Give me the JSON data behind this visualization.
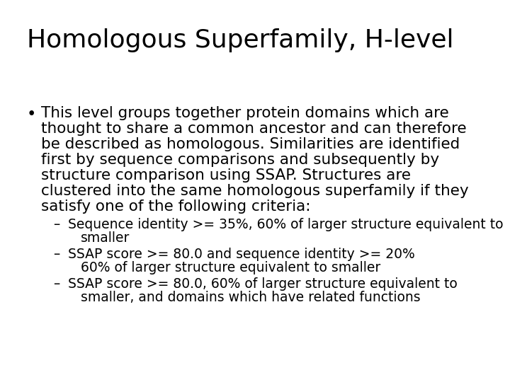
{
  "title": "Homologous Superfamily, H-level",
  "title_fontsize": 26,
  "background_color": "#ffffff",
  "text_color": "#000000",
  "font_family": "DejaVu Sans",
  "bullet_lines": [
    "This level groups together protein domains which are",
    "thought to share a common ancestor and can therefore",
    "be described as homologous. Similarities are identified",
    "first by sequence comparisons and subsequently by",
    "structure comparison using SSAP. Structures are",
    "clustered into the same homologous superfamily if they",
    "satisfy one of the following criteria:"
  ],
  "bullet_fontsize": 15.5,
  "sub_bullets": [
    [
      "Sequence identity >= 35%, 60% of larger structure equivalent to",
      "smaller"
    ],
    [
      "SSAP score >= 80.0 and sequence identity >= 20%",
      "60% of larger structure equivalent to smaller"
    ],
    [
      "SSAP score >= 80.0, 60% of larger structure equivalent to",
      "smaller, and domains which have related functions"
    ]
  ],
  "sub_bullet_fontsize": 13.5
}
